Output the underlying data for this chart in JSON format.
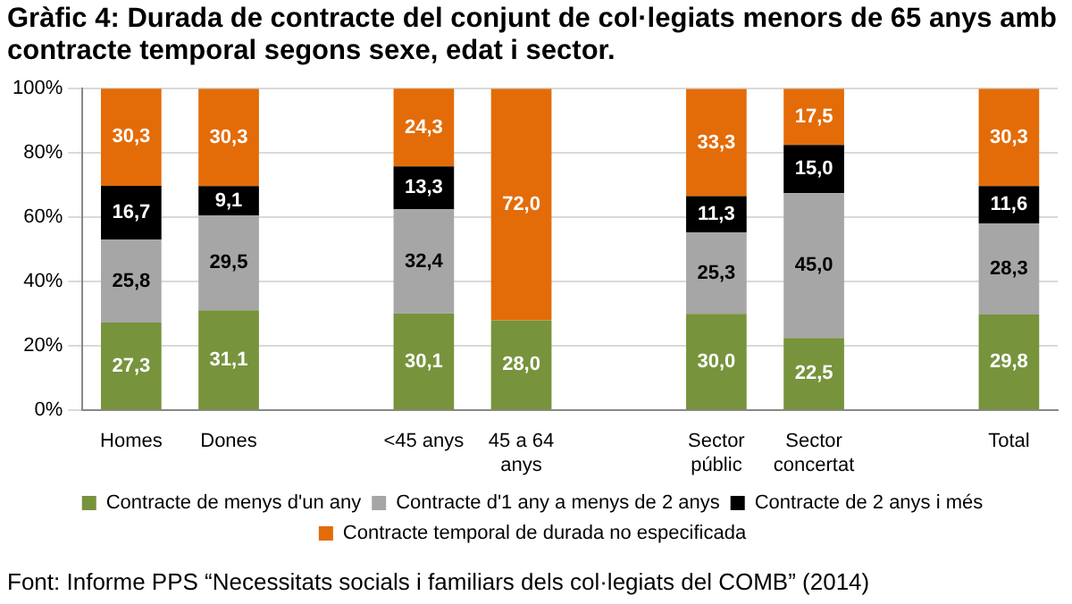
{
  "chart_data": {
    "type": "bar",
    "title": "Gràfic 4: Durada de contracte del conjunt de col·legiats menors de 65 anys amb contracte temporal segons sexe, edat i sector.",
    "categories": [
      "Homes",
      "Dones",
      null,
      "<45 anys",
      "45 a 64 anys",
      null,
      "Sector públic",
      "Sector concertat",
      null,
      "Total"
    ],
    "stacked": true,
    "ylim": [
      0,
      100
    ],
    "yticks": [
      {
        "value": 0,
        "label": "0%"
      },
      {
        "value": 20,
        "label": "20%"
      },
      {
        "value": 40,
        "label": "40%"
      },
      {
        "value": 60,
        "label": "60%"
      },
      {
        "value": 80,
        "label": "80%"
      },
      {
        "value": 100,
        "label": "100%"
      }
    ],
    "grid": "y",
    "legend": "bottom",
    "series": [
      {
        "name": "Contracte de menys d'un any",
        "color": "#77933c",
        "values": [
          27.3,
          31.1,
          null,
          30.1,
          28.0,
          null,
          30.0,
          22.5,
          null,
          29.8
        ],
        "value_labels": [
          "27,3",
          "31,1",
          null,
          "30,1",
          "28,0",
          null,
          "30,0",
          "22,5",
          null,
          "29,8"
        ]
      },
      {
        "name": "Contracte d'1 any a menys de 2 anys",
        "color": "#a6a6a6",
        "values": [
          25.8,
          29.5,
          null,
          32.4,
          null,
          null,
          25.3,
          45.0,
          null,
          28.3
        ],
        "value_labels": [
          "25,8",
          "29,5",
          null,
          "32,4",
          null,
          null,
          "25,3",
          "45,0",
          null,
          "28,3"
        ]
      },
      {
        "name": "Contracte de 2 anys i més",
        "color": "#000000",
        "values": [
          16.7,
          9.1,
          null,
          13.3,
          null,
          null,
          11.3,
          15.0,
          null,
          11.6
        ],
        "value_labels": [
          "16,7",
          "9,1",
          null,
          "13,3",
          null,
          null,
          "11,3",
          "15,0",
          null,
          "11,6"
        ]
      },
      {
        "name": "Contracte temporal de durada no especificada",
        "color": "#e36c09",
        "values": [
          30.3,
          30.3,
          null,
          24.3,
          72.0,
          null,
          33.3,
          17.5,
          null,
          30.3
        ],
        "value_labels": [
          "30,3",
          "30,3",
          null,
          "24,3",
          "72,0",
          null,
          "33,3",
          "17,5",
          null,
          "30,3"
        ]
      }
    ],
    "annotations": [
      "Font: Informe PPS “Necessitats socials i familiars dels col·legiats del COMB” (2014)"
    ]
  }
}
